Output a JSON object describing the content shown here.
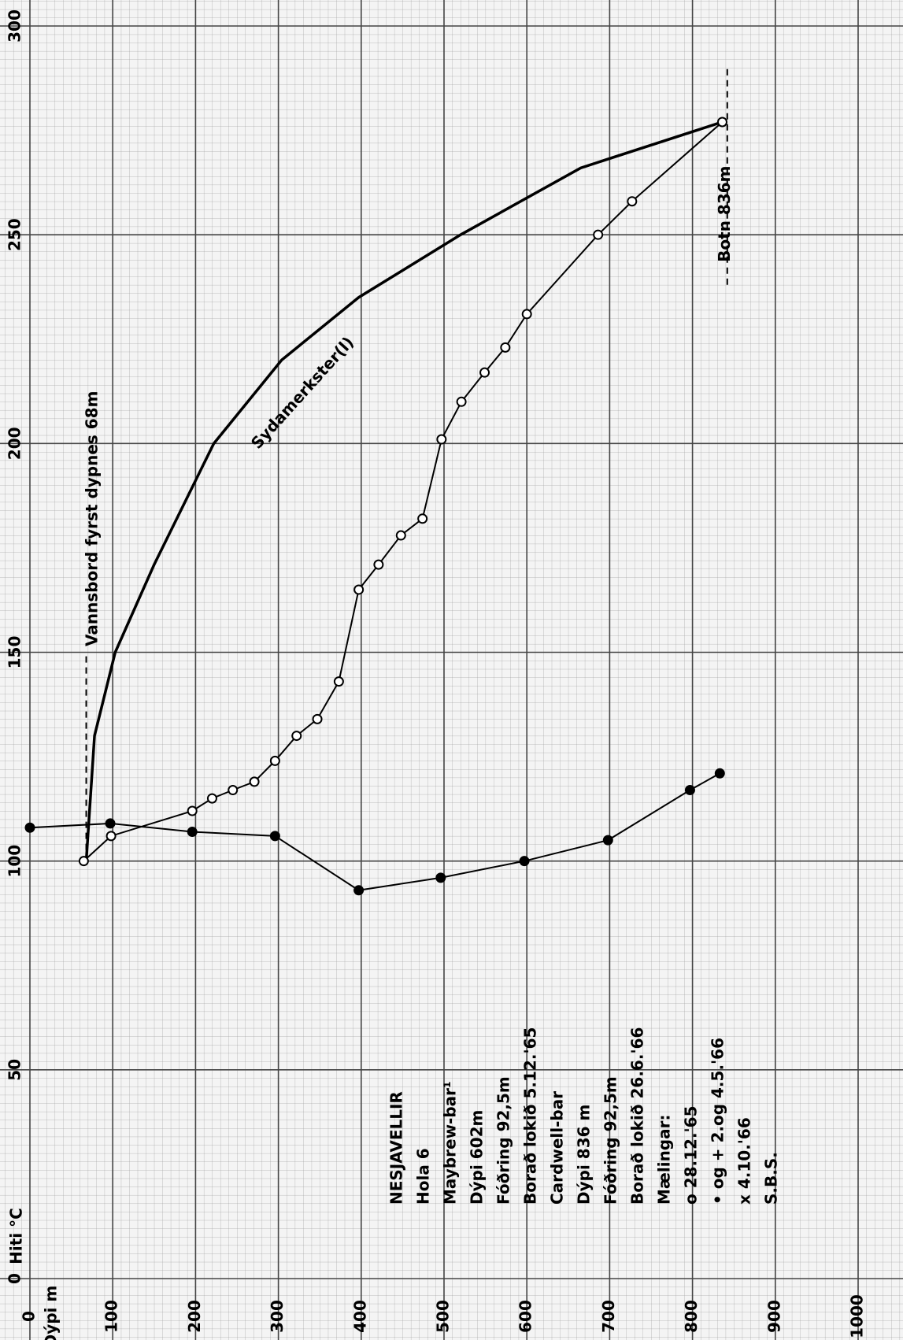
{
  "chart_data": {
    "type": "line",
    "y_axis_label": "Hiti °C",
    "x_axis_label": "Dýpi m",
    "xlim": [
      0,
      1000
    ],
    "xticks": [
      0,
      100,
      200,
      300,
      400,
      500,
      600,
      700,
      800,
      900,
      1000
    ],
    "ylim": [
      0,
      300
    ],
    "yticks": [
      0,
      50,
      100,
      150,
      200,
      250,
      300
    ],
    "grid": true,
    "series": [
      {
        "label": "Sydamerkster(l)",
        "color": "#000000",
        "marker": "none",
        "x": [
          68,
          78,
          103,
          150,
          222,
          304,
          397,
          520,
          665,
          836
        ],
        "values": [
          100,
          130,
          150,
          171,
          200,
          220,
          235,
          250,
          266,
          277
        ]
      },
      {
        "color": "#000000",
        "marker": "open",
        "x": [
          65,
          98,
          196,
          220,
          245,
          271,
          296,
          322,
          347,
          373,
          397,
          421,
          448,
          474,
          497,
          521,
          549,
          574,
          600,
          686,
          727,
          836
        ],
        "values": [
          100,
          106,
          112,
          115,
          117,
          119,
          124,
          130,
          134,
          143,
          165,
          171,
          178,
          182,
          201,
          210,
          217,
          223,
          231,
          250,
          258,
          277
        ]
      },
      {
        "color": "#000000",
        "marker": "filled",
        "x": [
          0,
          97,
          196,
          296,
          397,
          496,
          597,
          698,
          797,
          833
        ],
        "values": [
          108,
          109,
          107,
          106,
          93,
          96,
          100,
          105,
          117,
          121
        ]
      }
    ],
    "annotations": [
      "Vannsbord fyrst dypnes 68m",
      "Botn 836m"
    ],
    "notes": [
      "NESJAVELLIR",
      "Hola 6",
      "Maybrew-bar¹",
      "Dýpi 602m",
      "Fóðring 92,5m",
      "Borað lokið 5.12.'65",
      "Cardwell-bar",
      "Dýpi 836 m",
      "Fóðring 92,5m",
      "Borað lokið 26.6.'66",
      "Mælingar:",
      "o 28.12.'65",
      "• og + 2.og 4.5.'66",
      "x 4.10.'66",
      "S.B.S."
    ]
  }
}
